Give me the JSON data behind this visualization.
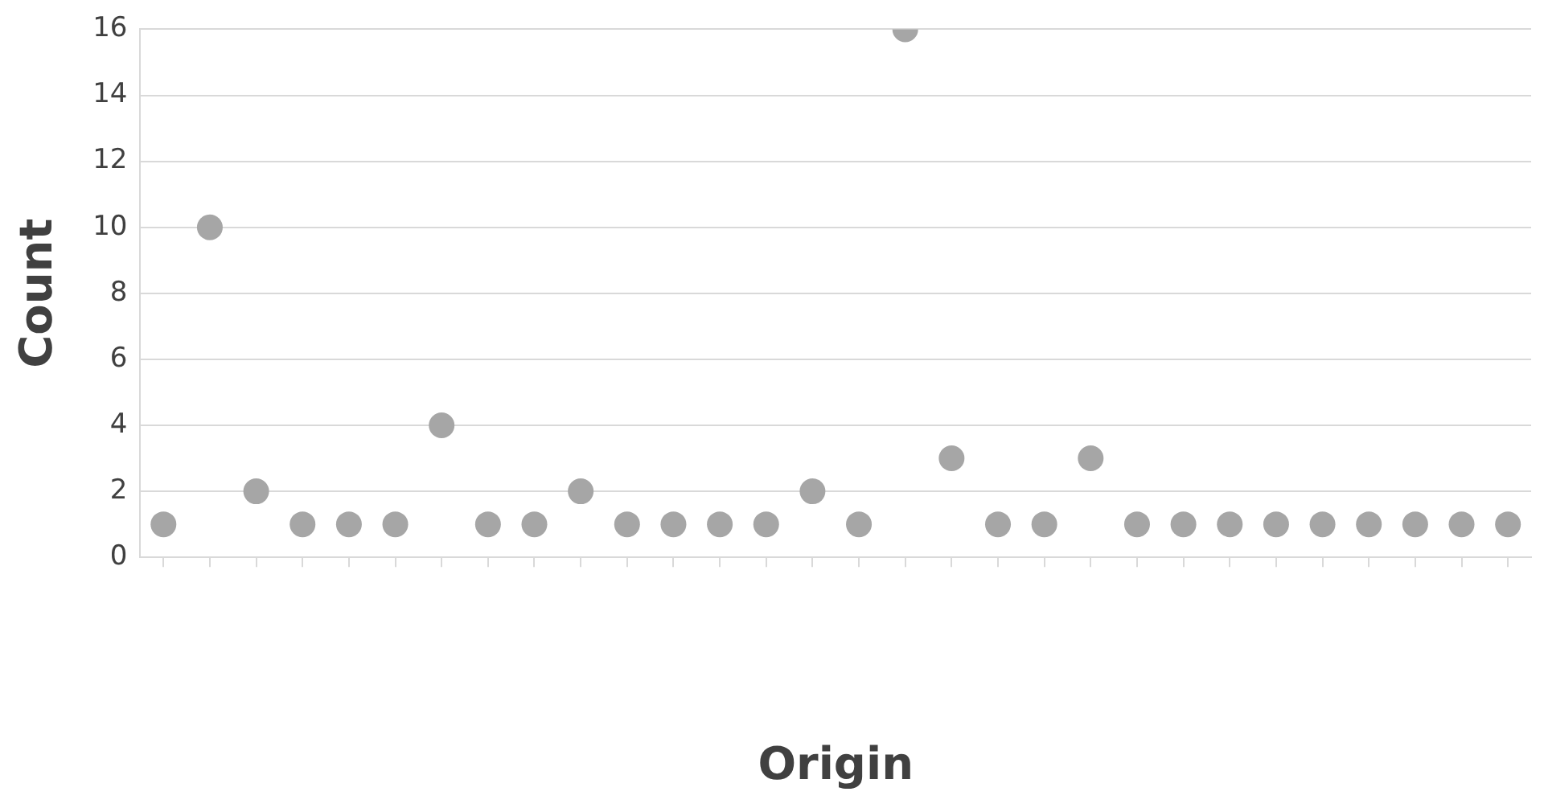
{
  "chart_data": {
    "type": "scatter",
    "xlabel": "Origin",
    "ylabel": "Count",
    "categories": [
      null,
      null,
      null,
      null,
      null,
      null,
      null,
      null,
      null,
      null,
      null,
      null,
      null,
      null,
      null,
      null,
      null,
      null,
      null,
      null,
      null,
      null,
      null,
      null,
      null,
      null,
      null,
      null,
      null,
      null
    ],
    "series": [
      {
        "color": "#a6a6a6",
        "values": [
          1,
          10,
          2,
          1,
          1,
          1,
          4,
          1,
          1,
          2,
          1,
          1,
          1,
          1,
          2,
          1,
          16,
          3,
          1,
          1,
          3,
          1,
          1,
          1,
          1,
          1,
          1,
          1,
          1,
          1
        ]
      }
    ],
    "ylim": [
      0,
      16
    ],
    "yticks": [
      0,
      2,
      4,
      6,
      8,
      10,
      12,
      14,
      16
    ],
    "grid": "y",
    "marker": "circle",
    "legend": false
  }
}
